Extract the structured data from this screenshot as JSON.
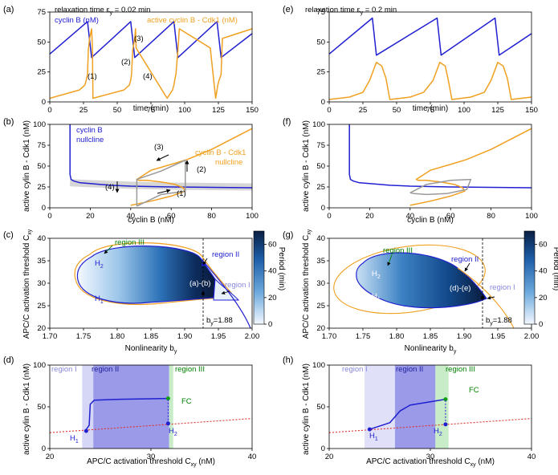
{
  "chart_data": [
    {
      "panel": "(a)",
      "type": "line",
      "annotation": "relaxation time ε",
      "annotation_sub": "y",
      "annotation_val": " = 0.02 min",
      "xlabel": "time (min)",
      "ylabel": "",
      "xlim": [
        0,
        150
      ],
      "ylim": [
        0,
        75
      ],
      "xticks": [
        "0",
        "25",
        "50",
        "75",
        "100",
        "125",
        "150"
      ],
      "yticks": [
        "0",
        "25",
        "50",
        "75"
      ],
      "legend": [
        "cyclin B (nM)",
        "active cyclin B - Cdk1 (nM)"
      ],
      "markers": [
        "(1)",
        "(2)",
        "(3)",
        "(4)"
      ],
      "series": [
        {
          "name": "cyclin B (nM)",
          "color": "#2020d0",
          "x": [
            0,
            28,
            31,
            60,
            63,
            92,
            95,
            124,
            127,
            150
          ],
          "y": [
            40,
            67,
            37,
            67,
            37,
            67,
            37,
            67,
            37,
            57
          ]
        },
        {
          "name": "active cyclin B - Cdk1 (nM)",
          "color": "#f0a020",
          "x": [
            0,
            22,
            26,
            27,
            28,
            28.6,
            29.5,
            31,
            31.6,
            32,
            55,
            59,
            60,
            60.6,
            61.5,
            63,
            63.6,
            64,
            87,
            91,
            92,
            92.6,
            93.5,
            95,
            95.6,
            96,
            119,
            123,
            124,
            124.6,
            125.5,
            127,
            127.6,
            128,
            150
          ],
          "y": [
            3,
            10,
            14,
            18,
            23,
            43,
            53,
            61,
            45,
            3,
            10,
            14,
            18,
            23,
            43,
            53,
            61,
            45,
            3,
            10,
            14,
            18,
            23,
            43,
            53,
            61,
            45,
            3,
            10,
            14,
            18,
            23,
            43,
            53,
            61
          ]
        }
      ]
    },
    {
      "panel": "(b)",
      "type": "line",
      "xlabel": "cyclin B (nM)",
      "ylabel": "active cylin B - Cdk1 (nM)",
      "xlim": [
        0,
        100
      ],
      "ylim": [
        0,
        100
      ],
      "xticks": [
        "0",
        "20",
        "40",
        "60",
        "80",
        "100"
      ],
      "yticks": [
        "0",
        "25",
        "50",
        "75",
        "100"
      ],
      "labels": [
        "cyclin B",
        "nullcline",
        "cyclin B - Cdk1",
        "nullcline"
      ],
      "markers": [
        "(1)",
        "(2)",
        "(3)",
        "(4)"
      ],
      "series": [
        {
          "name": "cyclin B nullcline",
          "color": "#2020d0",
          "x": [
            10,
            10,
            10.5,
            12,
            15,
            20,
            30,
            40,
            60,
            80,
            100
          ],
          "y": [
            100,
            40,
            34,
            32,
            30,
            29,
            27,
            26,
            25,
            24.5,
            24
          ]
        },
        {
          "name": "cyclin B - Cdk1 nullcline",
          "color": "#f0a020",
          "x": [
            40,
            50,
            60,
            67,
            66,
            62,
            55,
            48,
            44,
            43,
            50,
            60,
            68,
            80,
            100
          ],
          "y": [
            3,
            8,
            14,
            20,
            24,
            28,
            31,
            33,
            33,
            34,
            45,
            52,
            58,
            70,
            95
          ]
        },
        {
          "name": "limit cycle",
          "color": "#999999",
          "x": [
            43,
            43,
            55,
            67,
            67,
            55,
            43
          ],
          "y": [
            2,
            34,
            44,
            57,
            20,
            16,
            2
          ]
        }
      ]
    },
    {
      "panel": "(c)",
      "type": "heatmap",
      "xlabel": "Nonlinearity b",
      "xlabel_sub": "y",
      "ylabel": "APC/C activation threshold C",
      "ylabel_sub": "xy",
      "xlim": [
        1.7,
        2.0
      ],
      "ylim": [
        20,
        40
      ],
      "xticks": [
        "1.70",
        "1.75",
        "1.80",
        "1.85",
        "1.90",
        "1.95",
        "2.00"
      ],
      "yticks": [
        "20",
        "25",
        "30",
        "35",
        "40"
      ],
      "colorbar": {
        "label": "Period (min)",
        "ticks": [
          "0",
          "20",
          "40",
          "60"
        ]
      },
      "labels": [
        "region III",
        "region II",
        "region I",
        "(a)-(b)",
        "H",
        "2",
        "H",
        "1",
        "b",
        "y",
        "=1.88"
      ]
    },
    {
      "panel": "(d)",
      "type": "line",
      "xlabel": "APC/C activation threshold C",
      "xlabel_sub": "xy",
      "xlabel_unit": " (nM)",
      "ylabel": "active cylin B - Cdk1 (nM)",
      "xlim": [
        20,
        40
      ],
      "ylim": [
        0,
        100
      ],
      "xticks": [
        "20",
        "30",
        "40"
      ],
      "yticks": [
        "0",
        "50",
        "100"
      ],
      "regions": [
        "region I",
        "region II",
        "region III"
      ],
      "labels": [
        "FC",
        "H",
        "1",
        "H",
        "2"
      ],
      "series": [
        {
          "name": "unstable steady state",
          "color": "#e03030",
          "x": [
            20,
            40
          ],
          "y": [
            19,
            36
          ]
        },
        {
          "name": "oscillation amplitude",
          "color": "#2020d0",
          "x": [
            23.5,
            23.9,
            24,
            24.4,
            27,
            31.7
          ],
          "y": [
            21,
            28,
            53,
            58,
            59,
            60
          ]
        }
      ]
    },
    {
      "panel": "(e)",
      "type": "line",
      "annotation": "relaxation time ε",
      "annotation_sub": "y",
      "annotation_val": " = 0.2 min",
      "xlabel": "time (min)",
      "ylabel": "",
      "xlim": [
        0,
        150
      ],
      "ylim": [
        0,
        75
      ],
      "xticks": [
        "0",
        "25",
        "50",
        "75",
        "100",
        "125",
        "150"
      ],
      "yticks": [
        "0",
        "25",
        "50",
        "75"
      ],
      "series": [
        {
          "name": "cyclin B",
          "color": "#2020d0",
          "x": [
            0,
            32,
            35,
            80,
            83,
            123,
            126,
            150
          ],
          "y": [
            40,
            70,
            39,
            70,
            39,
            70,
            39,
            57
          ]
        },
        {
          "name": "active cyclin B - Cdk1",
          "color": "#f0a020",
          "x": [
            0,
            15,
            25,
            30,
            35,
            39,
            42,
            45,
            60,
            70,
            77,
            82,
            86,
            88,
            91,
            105,
            115,
            120,
            125,
            129,
            132,
            135,
            150
          ],
          "y": [
            2,
            4,
            8,
            18,
            33,
            30,
            20,
            2,
            4,
            8,
            18,
            33,
            30,
            20,
            2,
            4,
            8,
            18,
            33,
            30,
            20,
            2,
            4
          ]
        }
      ]
    },
    {
      "panel": "(f)",
      "type": "line",
      "xlabel": "cyclin B (nM)",
      "ylabel": "active cylin B - Cdk1 (nM)",
      "xlim": [
        0,
        100
      ],
      "ylim": [
        0,
        100
      ],
      "xticks": [
        "0",
        "20",
        "40",
        "60",
        "80",
        "100"
      ],
      "yticks": [
        "0",
        "25",
        "50",
        "75",
        "100"
      ],
      "series": [
        {
          "name": "cyclin B nullcline",
          "color": "#2020d0",
          "x": [
            10,
            10,
            10.5,
            12,
            15,
            20,
            30,
            40,
            60,
            80,
            100
          ],
          "y": [
            100,
            40,
            34,
            32,
            30,
            29,
            27,
            26,
            25,
            24.5,
            24
          ]
        },
        {
          "name": "cyclin B - Cdk1 nullcline",
          "color": "#f0a020",
          "x": [
            40,
            50,
            60,
            67,
            66,
            62,
            55,
            48,
            44,
            43,
            50,
            60,
            68,
            80,
            100
          ],
          "y": [
            3,
            8,
            14,
            20,
            24,
            28,
            31,
            33,
            33,
            34,
            45,
            52,
            58,
            70,
            95
          ]
        },
        {
          "name": "limit cycle",
          "color": "#999999",
          "x": [
            40,
            48,
            60,
            70,
            68,
            58,
            48,
            42,
            40
          ],
          "y": [
            18,
            28,
            33,
            34,
            22,
            17,
            16,
            17,
            18
          ]
        }
      ]
    },
    {
      "panel": "(g)",
      "type": "heatmap",
      "xlabel": "Nonlinearity b",
      "xlabel_sub": "y",
      "ylabel": "APC/C activation threshold C",
      "ylabel_sub": "xy",
      "xlim": [
        1.7,
        2.0
      ],
      "ylim": [
        20,
        40
      ],
      "xticks": [
        "1.70",
        "1.75",
        "1.80",
        "1.85",
        "1.90",
        "1.95",
        "2.00"
      ],
      "yticks": [
        "20",
        "25",
        "30",
        "35",
        "40"
      ],
      "colorbar": {
        "label": "Period (min)",
        "ticks": [
          "0",
          "20",
          "40",
          "60"
        ]
      },
      "labels": [
        "region III",
        "region II",
        "region I",
        "(d)-(e)",
        "H",
        "2",
        "H",
        "1",
        "b",
        "y",
        "=1.88"
      ]
    },
    {
      "panel": "(h)",
      "type": "line",
      "xlabel": "APC/C activation threshold C",
      "xlabel_sub": "xy",
      "xlabel_unit": " (nM)",
      "ylabel": "active cylin B - Cdk1 (nM)",
      "xlim": [
        20,
        40
      ],
      "ylim": [
        0,
        100
      ],
      "xticks": [
        "20",
        "30",
        "40"
      ],
      "yticks": [
        "0",
        "50",
        "100"
      ],
      "regions": [
        "region I",
        "region II",
        "region III"
      ],
      "labels": [
        "FC",
        "H",
        "1",
        "H",
        "2"
      ],
      "series": [
        {
          "name": "unstable steady state",
          "color": "#e03030",
          "x": [
            20,
            40
          ],
          "y": [
            19,
            36
          ]
        },
        {
          "name": "oscillation amplitude",
          "color": "#2020d0",
          "x": [
            24,
            26,
            27,
            28,
            30,
            31.5
          ],
          "y": [
            23,
            31,
            45,
            52,
            56,
            59
          ]
        }
      ]
    }
  ]
}
